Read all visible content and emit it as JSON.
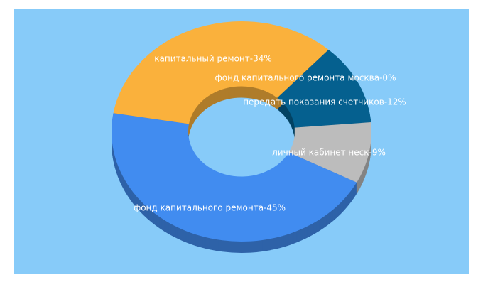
{
  "chart_data": {
    "type": "donut3d",
    "labels": [
      "фонд капитального ремонта москва-0%",
      "передать показания счетчиков-12%",
      "личный кабинет неск-9%",
      "фонд капитального ремонта-45%",
      "капитальный ремонт-34%"
    ],
    "values": [
      0,
      12,
      9,
      45,
      34
    ],
    "colors": [
      "#ef6b25",
      "#05608f",
      "#bcbcbc",
      "#418cf0",
      "#fab13c"
    ]
  }
}
